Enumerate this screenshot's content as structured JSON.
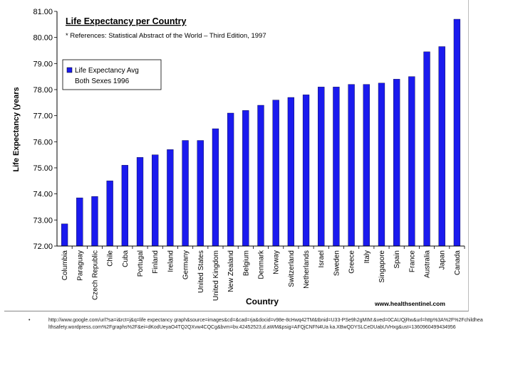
{
  "chart_data": {
    "type": "bar",
    "title": "Life Expectancy per Country",
    "subtitle": "* References: Statistical Abstract of the World – Third Edition, 1997",
    "xlabel": "Country",
    "ylabel": "Life Expectancy (years",
    "ylim": [
      72.0,
      81.0
    ],
    "yticks": [
      "72.00",
      "73.00",
      "74.00",
      "75.00",
      "76.00",
      "77.00",
      "78.00",
      "79.00",
      "80.00",
      "81.00"
    ],
    "legend": {
      "position": "top-left",
      "line1": "Life Expectancy Avg",
      "line2": "Both Sexes 1996"
    },
    "series_color": "#1a1aee",
    "categories": [
      "Columbia",
      "Paraguay",
      "Czech Republic",
      "Chile",
      "Cuba",
      "Portugal",
      "Finland",
      "Ireland",
      "Germany",
      "United States",
      "United Kingdom",
      "New Zealand",
      "Belgium",
      "Denmark",
      "Norway",
      "Switzerland",
      "Netherlands",
      "Israel",
      "Sweden",
      "Greece",
      "Italy",
      "Singapore",
      "Spain",
      "France",
      "Australia",
      "Japan",
      "Canada"
    ],
    "values": [
      72.85,
      73.85,
      73.9,
      74.5,
      75.1,
      75.4,
      75.5,
      75.7,
      76.05,
      76.05,
      76.5,
      77.1,
      77.2,
      77.4,
      77.6,
      77.7,
      77.8,
      78.1,
      78.1,
      78.2,
      78.2,
      78.25,
      78.4,
      78.5,
      79.45,
      79.65,
      80.7
    ],
    "watermark": "www.healthsentinel.com"
  },
  "footnote": {
    "bullet": "•",
    "text": "http://www.google.com/url?sa=i&rct=j&q=life expectancy graph&source=images&cd=&cad=rja&docid=v98e-8cHwq42TM&tbnid=U33-PSe9h2gMIM:&ved=0CAUQjRw&url=http%3A%2F%2Fchildhealthsafety.wordpress.com%2Fgraphs%2F&ei=dKodUeyaO4TQ2QXvw4CQCg&bvm=bv.42452523,d.aWM&psig=AFQjCNFN4Ua ka.XBwQDYSLCeDUabUVHxg&ust=1360960499434956"
  }
}
